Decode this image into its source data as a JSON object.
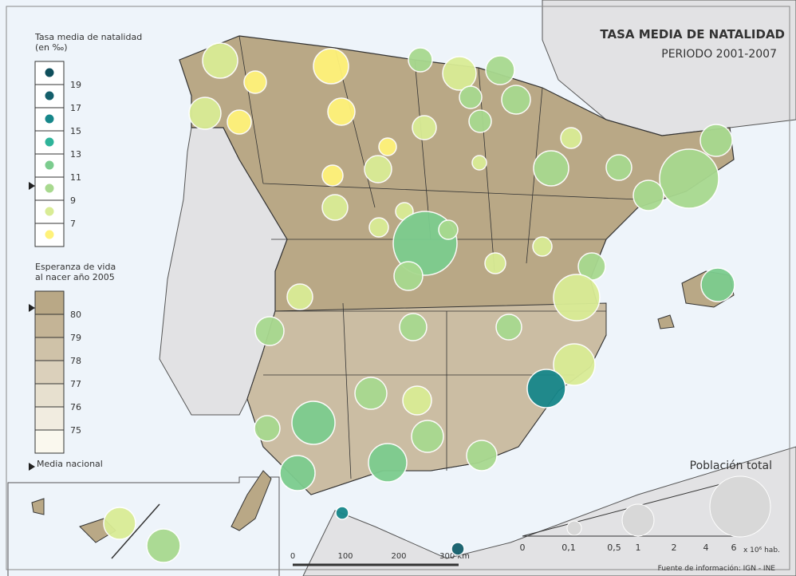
{
  "header": {
    "title": "TASA MEDIA DE NATALIDAD",
    "subtitle": "PERIODO 2001-2007"
  },
  "legend_birth": {
    "title": [
      "Tasa media de natalidad",
      "(en ‰)"
    ],
    "ticks": [
      19,
      17,
      15,
      13,
      11,
      9,
      7
    ]
  },
  "legend_life": {
    "title": [
      "Esperanza de vida",
      "al nacer año 2005"
    ],
    "ticks": [
      80,
      79,
      78,
      77,
      76,
      75
    ]
  },
  "national_mean": "Media nacional",
  "population": {
    "title": "Población total",
    "labels": [
      "0",
      "0,1",
      "0,5",
      "1",
      "2",
      "4",
      "6"
    ],
    "unit": "x 10⁶ hab."
  },
  "scale": {
    "labels": [
      "0",
      "100",
      "200",
      "300 km"
    ]
  },
  "source": "Fuente de información: IGN - INE"
}
